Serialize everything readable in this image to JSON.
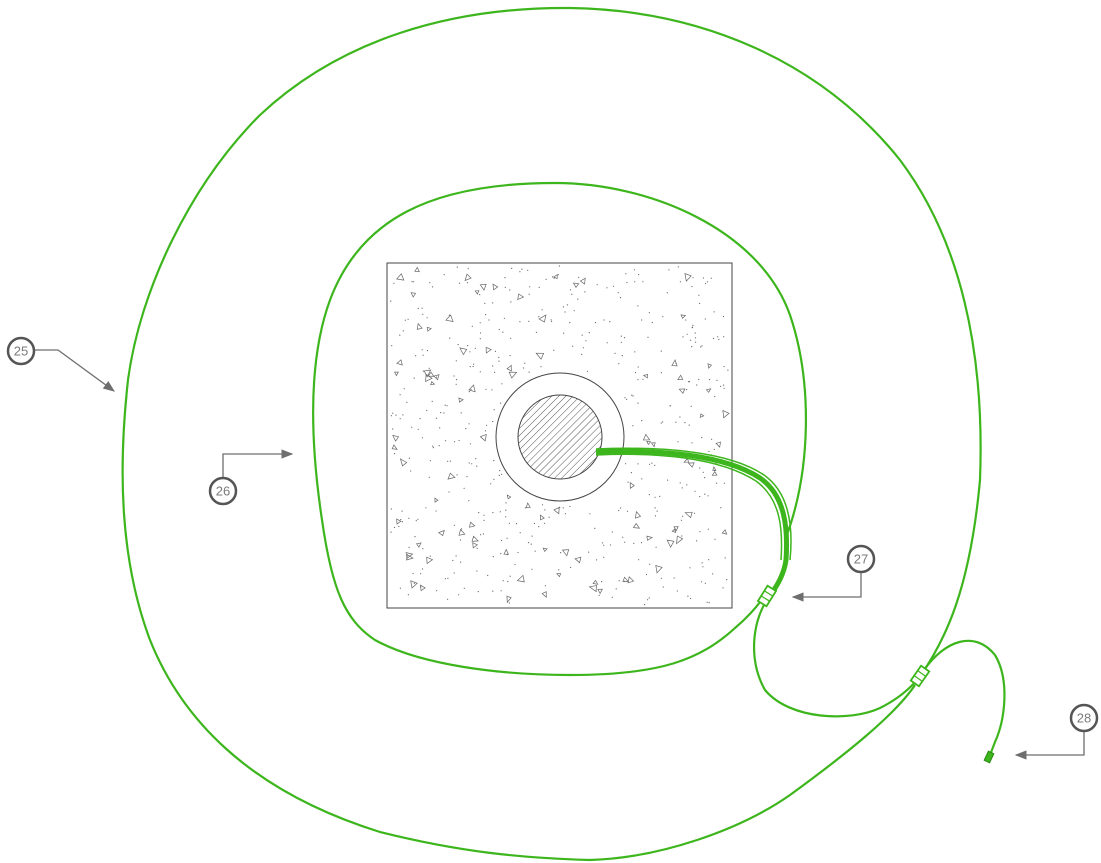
{
  "colors": {
    "cable": "#3db51c",
    "outline": "#444444",
    "callout": "#6e6e6e",
    "hatch": "#555555",
    "stipple": "#666666"
  },
  "callouts": [
    {
      "id": "25",
      "label": "25",
      "target": "outer-cable-loop"
    },
    {
      "id": "26",
      "label": "26",
      "target": "inner-cable-loop"
    },
    {
      "id": "27",
      "label": "27",
      "target": "first-splice-connector"
    },
    {
      "id": "28",
      "label": "28",
      "target": "cable-end-terminal"
    }
  ]
}
